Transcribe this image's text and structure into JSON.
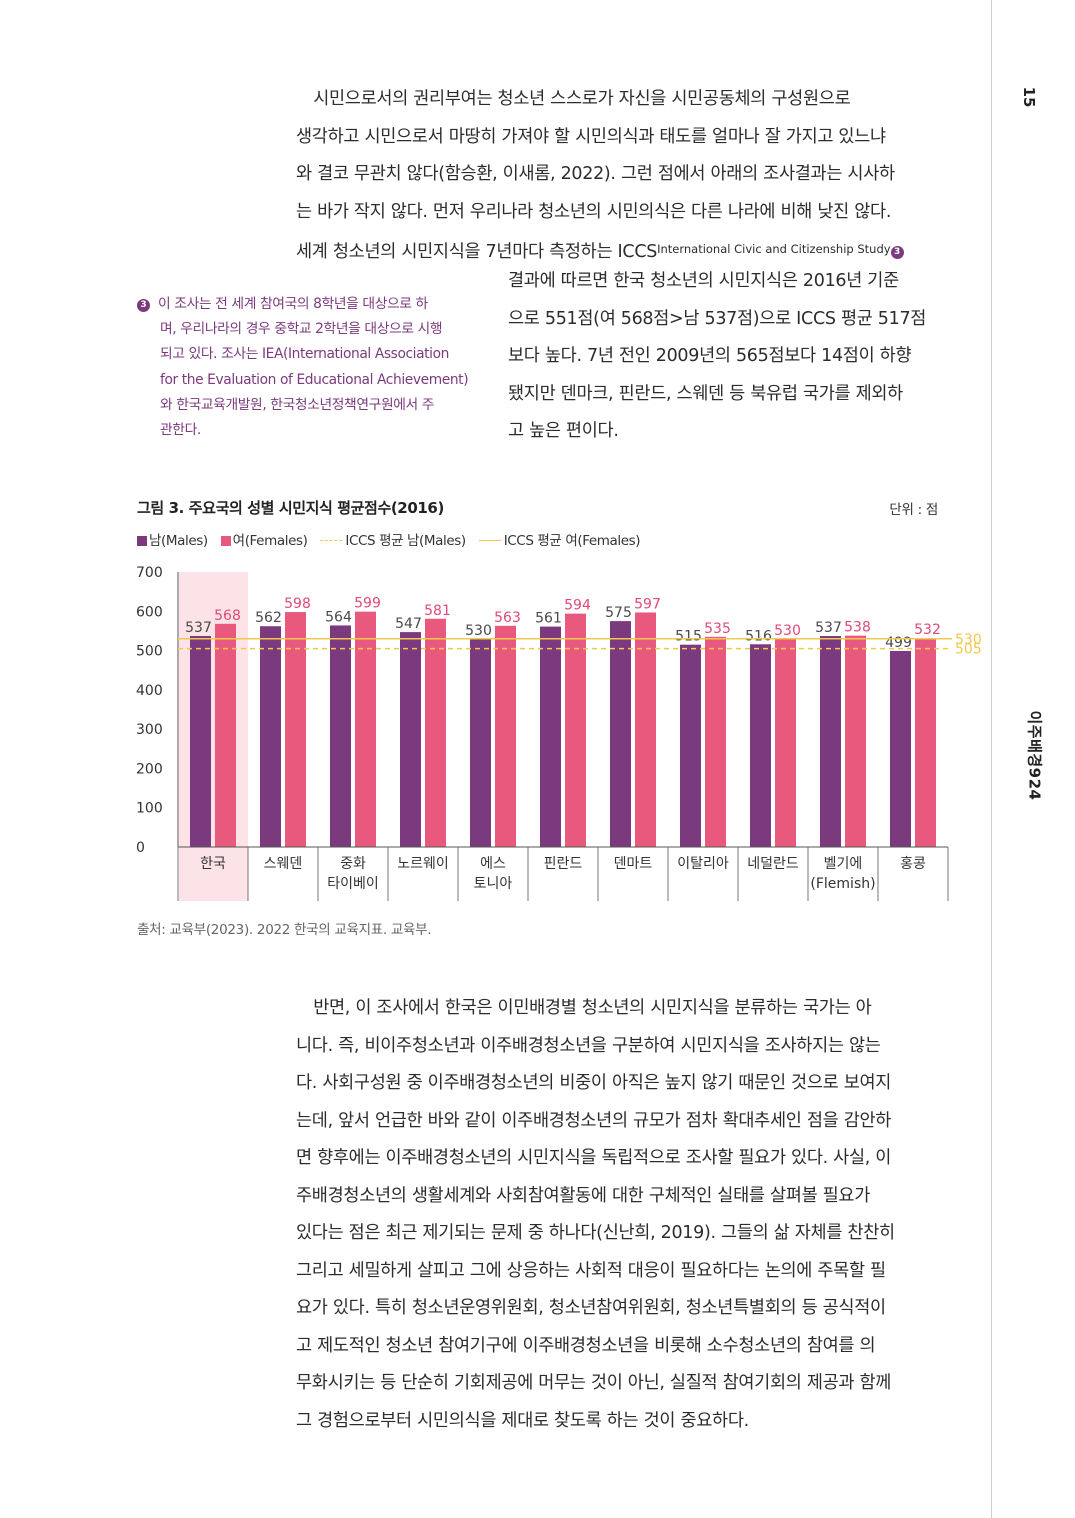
{
  "page": {
    "number": "15",
    "running_title": "이주배경924"
  },
  "para1": {
    "lines": [
      "　시민으로서의 권리부여는 청소년 스스로가 자신을 시민공동체의 구성원으로",
      "생각하고 시민으로서 마땅히 가져야 할 시민의식과 태도를 얼마나 잘 가지고 있느냐",
      "와 결코 무관치 않다(함승환, 이새롬, 2022). 그런 점에서 아래의 조사결과는 시사하",
      "는 바가 작지 않다. 먼저 우리나라 청소년의 시민의식은 다른 나라에 비해 낮진 않다.",
      "세계 청소년의 시민지식을 7년마다 측정하는 ICCS"
    ],
    "superscript": "International Civic and Citizenship Study",
    "note_marker": "3"
  },
  "para1b": {
    "lines": [
      "결과에 따르면 한국 청소년의 시민지식은 2016년 기준",
      "으로 551점(여 568점>남 537점)으로 ICCS 평균 517점",
      "보다 높다. 7년 전인 2009년의 565점보다 14점이 하향",
      "됐지만 덴마크, 핀란드, 스웨덴 등 북유럽 국가를 제외하",
      "고 높은 편이다."
    ]
  },
  "footnote": {
    "marker": "3",
    "lines": [
      "이 조사는 전 세계 참여국의 8학년을 대상으로 하",
      "며, 우리나라의 경우 중학교 2학년을 대상으로 시행",
      "되고 있다. 조사는 IEA(International Association",
      "for the Evaluation of Educational Achievement)",
      "와 한국교육개발원, 한국청소년정책연구원에서 주",
      "관한다."
    ]
  },
  "chart_data": {
    "type": "bar",
    "title": "그림 3. 주요국의 성별 시민지식 평균점수(2016)",
    "unit": "단위 : 점",
    "categories": [
      [
        "한국"
      ],
      [
        "스웨덴"
      ],
      [
        "중화",
        "타이베이"
      ],
      [
        "노르웨이"
      ],
      [
        "에스",
        "토니아"
      ],
      [
        "핀란드"
      ],
      [
        "덴마트"
      ],
      [
        "이탈리아"
      ],
      [
        "네덜란드"
      ],
      [
        "벨기에",
        "(Flemish)"
      ],
      [
        "홍콩"
      ]
    ],
    "series": [
      {
        "name": "남(Males)",
        "color": "#7b3a7e",
        "label_color": "#4a4a4a",
        "values": [
          537,
          562,
          564,
          547,
          530,
          561,
          575,
          515,
          516,
          537,
          499
        ]
      },
      {
        "name": "여(Females)",
        "color": "#e9597e",
        "label_color": "#e04a76",
        "values": [
          568,
          598,
          599,
          581,
          563,
          594,
          597,
          535,
          530,
          538,
          532
        ]
      }
    ],
    "reference_lines": [
      {
        "name": "ICCS 평균 남(Males)",
        "value": 505,
        "label": "505",
        "style": "dashed",
        "color": "#f2c94c"
      },
      {
        "name": "ICCS 평균 여(Females)",
        "value": 530,
        "label": "530",
        "style": "solid",
        "color": "#f2c94c"
      }
    ],
    "highlight_category_index": 0,
    "highlight_color": "#fbe3e8",
    "yticks": [
      "0",
      "100",
      "200",
      "300",
      "400",
      "500",
      "600",
      "700"
    ],
    "ylim": [
      0,
      700
    ],
    "xlabel": "",
    "ylabel": "",
    "legend_position": "top-left"
  },
  "source": "출처: 교육부(2023). 2022 한국의 교육지표. 교육부.",
  "para2": {
    "lines": [
      "　반면, 이 조사에서 한국은 이민배경별 청소년의 시민지식을 분류하는 국가는 아",
      "니다. 즉, 비이주청소년과 이주배경청소년을 구분하여 시민지식을 조사하지는 않는",
      "다. 사회구성원 중 이주배경청소년의 비중이 아직은 높지 않기 때문인 것으로 보여지",
      "는데, 앞서 언급한 바와 같이 이주배경청소년의 규모가 점차 확대추세인 점을 감안하",
      "면 향후에는 이주배경청소년의 시민지식을 독립적으로 조사할 필요가 있다. 사실, 이",
      "주배경청소년의 생활세계와 사회참여활동에 대한 구체적인 실태를 살펴볼 필요가",
      "있다는 점은 최근 제기되는 문제 중 하나다(신난희, 2019). 그들의 삶 자체를 찬찬히",
      "그리고 세밀하게 살피고 그에 상응하는 사회적 대응이 필요하다는 논의에 주목할 필",
      "요가 있다. 특히 청소년운영위원회, 청소년참여위원회, 청소년특별회의 등 공식적이",
      "고 제도적인 청소년 참여기구에 이주배경청소년을 비롯해 소수청소년의 참여를 의",
      "무화시키는 등 단순히 기회제공에 머무는 것이 아닌, 실질적 참여기회의 제공과 함께",
      "그 경험으로부터 시민의식을 제대로 찾도록 하는 것이 중요하다."
    ]
  }
}
